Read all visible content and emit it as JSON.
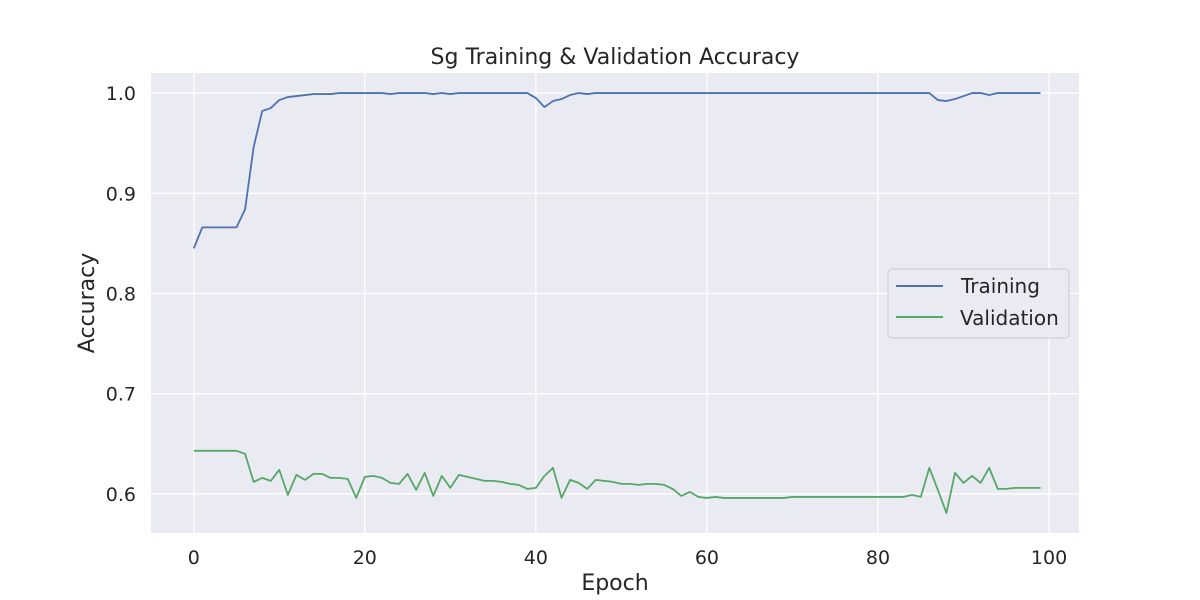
{
  "chart_data": {
    "type": "line",
    "title": "Sg Training & Validation Accuracy",
    "xlabel": "Epoch",
    "ylabel": "Accuracy",
    "xlim": [
      -5,
      103.5
    ],
    "ylim": [
      0.561,
      1.02
    ],
    "x_ticks": [
      0,
      20,
      40,
      60,
      80,
      100
    ],
    "y_ticks": [
      0.6,
      0.7,
      0.8,
      0.9,
      1.0
    ],
    "y_tick_labels": [
      "0.6",
      "0.7",
      "0.8",
      "0.9",
      "1.0"
    ],
    "grid": true,
    "legend_position": "center-right",
    "background_color": "#eaeaf2",
    "series": [
      {
        "name": "Training",
        "color": "#4c72b0",
        "x": [
          0,
          1,
          2,
          3,
          4,
          5,
          6,
          7,
          8,
          9,
          10,
          11,
          12,
          13,
          14,
          15,
          16,
          17,
          18,
          19,
          20,
          21,
          22,
          23,
          24,
          25,
          26,
          27,
          28,
          29,
          30,
          31,
          32,
          33,
          34,
          35,
          36,
          37,
          38,
          39,
          40,
          41,
          42,
          43,
          44,
          45,
          46,
          47,
          48,
          49,
          50,
          51,
          52,
          53,
          54,
          55,
          56,
          57,
          58,
          59,
          60,
          61,
          62,
          63,
          64,
          65,
          66,
          67,
          68,
          69,
          70,
          71,
          72,
          73,
          74,
          75,
          76,
          77,
          78,
          79,
          80,
          81,
          82,
          83,
          84,
          85,
          86,
          87,
          88,
          89,
          90,
          91,
          92,
          93,
          94,
          95,
          96,
          97,
          98,
          99
        ],
        "values": [
          0.845,
          0.866,
          0.866,
          0.866,
          0.866,
          0.866,
          0.884,
          0.946,
          0.982,
          0.985,
          0.993,
          0.996,
          0.997,
          0.998,
          0.999,
          0.999,
          0.999,
          1.0,
          1.0,
          1.0,
          1.0,
          1.0,
          1.0,
          0.999,
          1.0,
          1.0,
          1.0,
          1.0,
          0.999,
          1.0,
          0.999,
          1.0,
          1.0,
          1.0,
          1.0,
          1.0,
          1.0,
          1.0,
          1.0,
          1.0,
          0.995,
          0.986,
          0.992,
          0.994,
          0.998,
          1.0,
          0.999,
          1.0,
          1.0,
          1.0,
          1.0,
          1.0,
          1.0,
          1.0,
          1.0,
          1.0,
          1.0,
          1.0,
          1.0,
          1.0,
          1.0,
          1.0,
          1.0,
          1.0,
          1.0,
          1.0,
          1.0,
          1.0,
          1.0,
          1.0,
          1.0,
          1.0,
          1.0,
          1.0,
          1.0,
          1.0,
          1.0,
          1.0,
          1.0,
          1.0,
          1.0,
          1.0,
          1.0,
          1.0,
          1.0,
          1.0,
          1.0,
          0.993,
          0.992,
          0.994,
          0.997,
          1.0,
          1.0,
          0.998,
          1.0,
          1.0,
          1.0,
          1.0,
          1.0,
          1.0
        ]
      },
      {
        "name": "Validation",
        "color": "#55a868",
        "x": [
          0,
          1,
          2,
          3,
          4,
          5,
          6,
          7,
          8,
          9,
          10,
          11,
          12,
          13,
          14,
          15,
          16,
          17,
          18,
          19,
          20,
          21,
          22,
          23,
          24,
          25,
          26,
          27,
          28,
          29,
          30,
          31,
          32,
          33,
          34,
          35,
          36,
          37,
          38,
          39,
          40,
          41,
          42,
          43,
          44,
          45,
          46,
          47,
          48,
          49,
          50,
          51,
          52,
          53,
          54,
          55,
          56,
          57,
          58,
          59,
          60,
          61,
          62,
          63,
          64,
          65,
          66,
          67,
          68,
          69,
          70,
          71,
          72,
          73,
          74,
          75,
          76,
          77,
          78,
          79,
          80,
          81,
          82,
          83,
          84,
          85,
          86,
          87,
          88,
          89,
          90,
          91,
          92,
          93,
          94,
          95,
          96,
          97,
          98,
          99
        ],
        "values": [
          0.643,
          0.643,
          0.643,
          0.643,
          0.643,
          0.643,
          0.64,
          0.612,
          0.616,
          0.613,
          0.624,
          0.599,
          0.619,
          0.614,
          0.62,
          0.62,
          0.616,
          0.616,
          0.615,
          0.596,
          0.617,
          0.618,
          0.616,
          0.611,
          0.61,
          0.62,
          0.604,
          0.621,
          0.598,
          0.618,
          0.606,
          0.619,
          0.617,
          0.615,
          0.613,
          0.613,
          0.612,
          0.61,
          0.609,
          0.605,
          0.606,
          0.618,
          0.626,
          0.596,
          0.614,
          0.611,
          0.605,
          0.614,
          0.613,
          0.612,
          0.61,
          0.61,
          0.609,
          0.61,
          0.61,
          0.609,
          0.605,
          0.598,
          0.602,
          0.597,
          0.596,
          0.597,
          0.596,
          0.596,
          0.596,
          0.596,
          0.596,
          0.596,
          0.596,
          0.596,
          0.597,
          0.597,
          0.597,
          0.597,
          0.597,
          0.597,
          0.597,
          0.597,
          0.597,
          0.597,
          0.597,
          0.597,
          0.597,
          0.597,
          0.599,
          0.597,
          0.626,
          0.604,
          0.581,
          0.621,
          0.611,
          0.618,
          0.611,
          0.626,
          0.605,
          0.605,
          0.606,
          0.606,
          0.606,
          0.606
        ]
      }
    ]
  }
}
